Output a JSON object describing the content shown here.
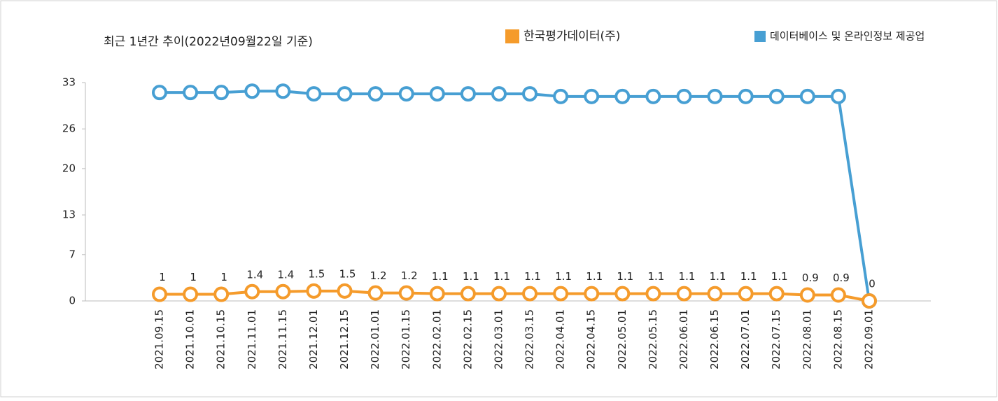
{
  "chart_data": {
    "type": "line",
    "title": "최근 1년간 추이(2022년09월22일 기준)",
    "categories": [
      "2021.09.15",
      "2021.10.01",
      "2021.10.15",
      "2021.11.01",
      "2021.11.15",
      "2021.12.01",
      "2021.12.15",
      "2022.01.01",
      "2022.01.15",
      "2022.02.01",
      "2022.02.15",
      "2022.03.01",
      "2022.03.15",
      "2022.04.01",
      "2022.04.15",
      "2022.05.01",
      "2022.05.15",
      "2022.06.01",
      "2022.06.15",
      "2022.07.01",
      "2022.07.15",
      "2022.08.01",
      "2022.08.15",
      "2022.09.01"
    ],
    "series": [
      {
        "name": "한국평가데이터(주)",
        "color": "#f59b2b",
        "values": [
          1,
          1,
          1,
          1.4,
          1.4,
          1.5,
          1.5,
          1.2,
          1.2,
          1.1,
          1.1,
          1.1,
          1.1,
          1.1,
          1.1,
          1.1,
          1.1,
          1.1,
          1.1,
          1.1,
          1.1,
          0.9,
          0.9,
          0
        ]
      },
      {
        "name": "데이터베이스 및 온라인정보 제공업",
        "color": "#479fd3",
        "values": [
          31.5,
          31.5,
          31.5,
          31.7,
          31.7,
          31.3,
          31.3,
          31.3,
          31.3,
          31.3,
          31.3,
          31.3,
          31.3,
          30.9,
          30.9,
          30.9,
          30.9,
          30.9,
          30.9,
          30.9,
          30.9,
          30.9,
          30.9,
          0
        ]
      }
    ],
    "ylim": [
      0,
      33
    ],
    "yticks": [
      0,
      7,
      13,
      20,
      26,
      33
    ]
  }
}
